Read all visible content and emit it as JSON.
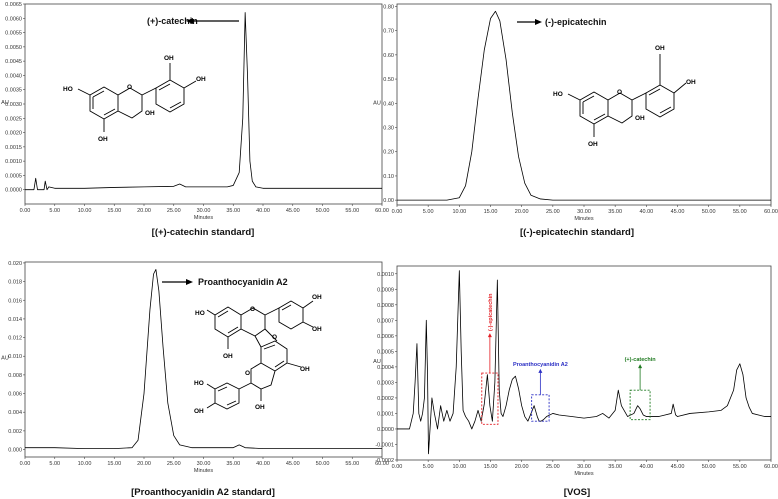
{
  "chart_data": [
    {
      "type": "line",
      "caption": "[(+)-catechin standard]",
      "xlabel": "Minutes",
      "ylabel": "AU",
      "xlim": [
        0,
        60
      ],
      "ylim": [
        -0.0005,
        0.0065
      ],
      "xticks": [
        "0.00",
        "5.00",
        "10.00",
        "15.00",
        "20.00",
        "25.00",
        "30.00",
        "35.00",
        "40.00",
        "45.00",
        "50.00",
        "55.00",
        "60.00"
      ],
      "yticks": [
        "0.0000",
        "0.0005",
        "0.0010",
        "0.0015",
        "0.0020",
        "0.0025",
        "0.0030",
        "0.0035",
        "0.0040",
        "0.0045",
        "0.0050",
        "0.0055",
        "0.0060",
        "0.0065"
      ],
      "annotation": "(+)-catechin",
      "atoms": [
        "OH",
        "OH",
        "HO",
        "O",
        "OH",
        "OH"
      ],
      "series": [
        {
          "x": [
            0,
            1.5,
            1.8,
            2.1,
            2.6,
            3.2,
            3.4,
            3.7,
            4,
            5,
            10,
            15,
            20,
            25,
            26,
            27,
            30,
            34,
            35,
            36,
            36.6,
            37.0,
            37.4,
            37.8,
            38.2,
            38.8,
            40,
            45,
            50,
            55,
            60
          ],
          "y": [
            0,
            0,
            0.0004,
            0.0,
            0,
            0,
            0.0003,
            0,
            0.0001,
            5e-05,
            5e-05,
            8e-05,
            0.0001,
            0.00012,
            0.0002,
            0.0001,
            0.0001,
            0.0001,
            0.00015,
            0.0006,
            0.0025,
            0.0062,
            0.004,
            0.001,
            0.0003,
            0.0001,
            5e-05,
            5e-05,
            5e-05,
            5e-05,
            5e-05
          ]
        }
      ]
    },
    {
      "type": "line",
      "caption": "[(-)-epicatechin  standard]",
      "xlabel": "Minutes",
      "ylabel": "AU",
      "xlim": [
        0,
        60
      ],
      "ylim": [
        -0.02,
        0.81
      ],
      "xticks": [
        "0.00",
        "5.00",
        "10.00",
        "15.00",
        "20.00",
        "25.00",
        "30.00",
        "35.00",
        "40.00",
        "45.00",
        "50.00",
        "55.00",
        "60.00"
      ],
      "yticks": [
        "0.00",
        "0.10",
        "0.20",
        "0.30",
        "0.40",
        "0.50",
        "0.60",
        "0.70",
        "0.80"
      ],
      "annotation": "(-)-epicatechin",
      "atoms": [
        "OH",
        "OH",
        "HO",
        "O",
        "OH",
        "OH"
      ],
      "series": [
        {
          "x": [
            0,
            8,
            10,
            11,
            12,
            13,
            14,
            15,
            15.8,
            16.5,
            17.5,
            18.5,
            19.5,
            20.5,
            21.5,
            23,
            25,
            30,
            40,
            50,
            60
          ],
          "y": [
            0,
            0,
            0.01,
            0.06,
            0.2,
            0.42,
            0.62,
            0.75,
            0.78,
            0.74,
            0.58,
            0.36,
            0.18,
            0.07,
            0.02,
            0.005,
            0,
            0,
            0,
            0,
            0
          ]
        }
      ]
    },
    {
      "type": "line",
      "caption": "[Proanthocyanidin A2 standard]",
      "xlabel": "Minutes",
      "ylabel": "AU",
      "xlim": [
        0,
        60
      ],
      "ylim": [
        -0.0008,
        0.0201
      ],
      "xticks": [
        "0.00",
        "5.00",
        "10.00",
        "15.00",
        "20.00",
        "25.00",
        "30.00",
        "35.00",
        "40.00",
        "45.00",
        "50.00",
        "55.00",
        "60.00"
      ],
      "yticks": [
        "0.000",
        "0.002",
        "0.004",
        "0.006",
        "0.008",
        "0.010",
        "0.012",
        "0.014",
        "0.016",
        "0.018",
        "0.020"
      ],
      "annotation": "Proanthocyanidin A2",
      "atoms": [
        "OH",
        "OH",
        "HO",
        "O",
        "O",
        "OH",
        "OH",
        "HO",
        "O",
        "OH",
        "OH",
        "OH"
      ],
      "series": [
        {
          "x": [
            0,
            5,
            10,
            15,
            18,
            19,
            20,
            21,
            21.6,
            22.0,
            22.5,
            23.2,
            24,
            25,
            26,
            28,
            30,
            35,
            36,
            37,
            40,
            50,
            60
          ],
          "y": [
            0.0002,
            0.0002,
            0.0001,
            0.0001,
            0.0002,
            0.001,
            0.006,
            0.015,
            0.0188,
            0.0193,
            0.017,
            0.011,
            0.005,
            0.0015,
            0.0005,
            0.0002,
            0.0002,
            0.0002,
            0.0005,
            0.0002,
            0.0001,
            0.0001,
            0.0001
          ]
        }
      ]
    },
    {
      "type": "line",
      "caption": "[VOS]",
      "xlabel": "Minutes",
      "ylabel": "AU",
      "xlim": [
        0,
        60
      ],
      "ylim": [
        -0.0002,
        0.00105
      ],
      "xticks": [
        "0.00",
        "5.00",
        "10.00",
        "15.00",
        "20.00",
        "25.00",
        "30.00",
        "35.00",
        "40.00",
        "45.00",
        "50.00",
        "55.00",
        "60.00"
      ],
      "yticks": [
        "-0.0002",
        "-0.0001",
        "0.0000",
        "0.0001",
        "0.0002",
        "0.0003",
        "0.0004",
        "0.0005",
        "0.0006",
        "0.0007",
        "0.0008",
        "0.0009",
        "0.0010"
      ],
      "annotations": [
        {
          "label": "(-)-epicatechin",
          "color": "#e41f25",
          "box_x": [
            13.6,
            16.2
          ],
          "box_y": [
            3e-05,
            0.00036
          ]
        },
        {
          "label": "Proanthocyanidin A2",
          "color": "#2b2fc4",
          "box_x": [
            21.6,
            24.4
          ],
          "box_y": [
            5e-05,
            0.00022
          ]
        },
        {
          "label": "(+)-catechin",
          "color": "#1f7a20",
          "box_x": [
            37.4,
            40.6
          ],
          "box_y": [
            6e-05,
            0.00025
          ]
        }
      ],
      "series": [
        {
          "x": [
            0,
            2,
            2.6,
            2.9,
            3.2,
            3.5,
            3.8,
            4.1,
            4.4,
            4.7,
            4.9,
            5.05,
            5.3,
            5.6,
            6,
            6.5,
            7,
            7.5,
            8,
            8.5,
            9,
            9.5,
            10,
            10.3,
            10.6,
            11,
            11.5,
            12,
            12.5,
            13,
            13.5,
            14,
            14.5,
            14.9,
            15.3,
            15.7,
            16.1,
            16.4,
            16.7,
            17,
            17.5,
            18,
            18.5,
            19,
            19.5,
            20,
            20.5,
            21,
            21.5,
            22,
            22.5,
            22.8,
            23.1,
            23.5,
            24,
            25,
            26,
            28,
            30,
            32,
            33,
            34,
            35,
            35.5,
            36,
            37,
            38,
            38.6,
            39,
            39.5,
            40,
            42,
            43,
            44,
            44.3,
            44.7,
            45,
            47,
            50,
            52,
            53,
            54,
            54.5,
            55,
            55.5,
            56,
            56.5,
            57,
            58,
            59,
            60
          ],
          "y": [
            0,
            0,
            0.0001,
            0.0003,
            0.00055,
            0.0001,
            5e-05,
            0.0001,
            0.0002,
            0.0007,
            0.00035,
            -0.00016,
            0.0,
            0.0002,
            0.0001,
            0.0,
            0.00015,
            5e-05,
            0.00012,
            5e-05,
            0.0001,
            0.0004,
            0.00102,
            0.0005,
            0.00012,
            8e-05,
            5e-05,
            0.0,
            5e-05,
            0.00012,
            5e-05,
            0.00016,
            0.00035,
            0.00015,
            5e-05,
            0.0003,
            0.00096,
            0.00025,
            0.0001,
            8e-05,
            0.00015,
            0.00025,
            0.00032,
            0.00034,
            0.00026,
            0.00015,
            8e-05,
            5e-05,
            0.0001,
            0.00015,
            8e-05,
            5e-05,
            5e-05,
            6e-05,
            8e-05,
            0.0001,
            9e-05,
            8e-05,
            7e-05,
            8e-05,
            0.0001,
            7e-05,
            0.00012,
            0.00025,
            0.00015,
            8e-05,
            0.0001,
            0.00015,
            0.00013,
            9e-05,
            8e-05,
            8e-05,
            9e-05,
            0.0001,
            0.00016,
            9e-05,
            8e-05,
            0.0001,
            0.00011,
            0.00012,
            0.00015,
            0.00025,
            0.00038,
            0.00042,
            0.00035,
            0.0002,
            0.00014,
            0.0001,
            9e-05,
            8e-05,
            8e-05
          ]
        }
      ]
    }
  ]
}
